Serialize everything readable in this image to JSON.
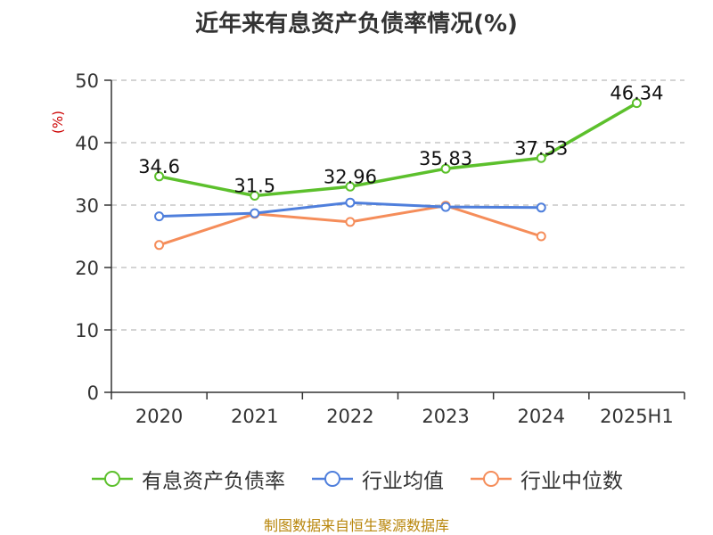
{
  "chart_data": {
    "type": "line",
    "title": "近年来有息资产负债率情况(%)",
    "ylabel": "(%)",
    "categories": [
      "2020",
      "2021",
      "2022",
      "2023",
      "2024",
      "2025H1"
    ],
    "ylim": [
      0,
      50
    ],
    "yticks": [
      0,
      10,
      20,
      30,
      40,
      50
    ],
    "grid": true,
    "legend_position": "bottom",
    "series": [
      {
        "name": "有息资产负债率",
        "color": "#5cc02c",
        "values": [
          34.6,
          31.5,
          32.96,
          35.83,
          37.53,
          46.34
        ],
        "labels": [
          "34.6",
          "31.5",
          "32.96",
          "35.83",
          "37.53",
          "46.34"
        ]
      },
      {
        "name": "行业均值",
        "color": "#4f7fdc",
        "values": [
          28.2,
          28.7,
          30.4,
          29.7,
          29.6,
          null
        ]
      },
      {
        "name": "行业中位数",
        "color": "#f58d5a",
        "values": [
          23.6,
          28.6,
          27.3,
          29.9,
          25.0,
          null
        ]
      }
    ]
  },
  "footer": "制图数据来自恒生聚源数据库"
}
